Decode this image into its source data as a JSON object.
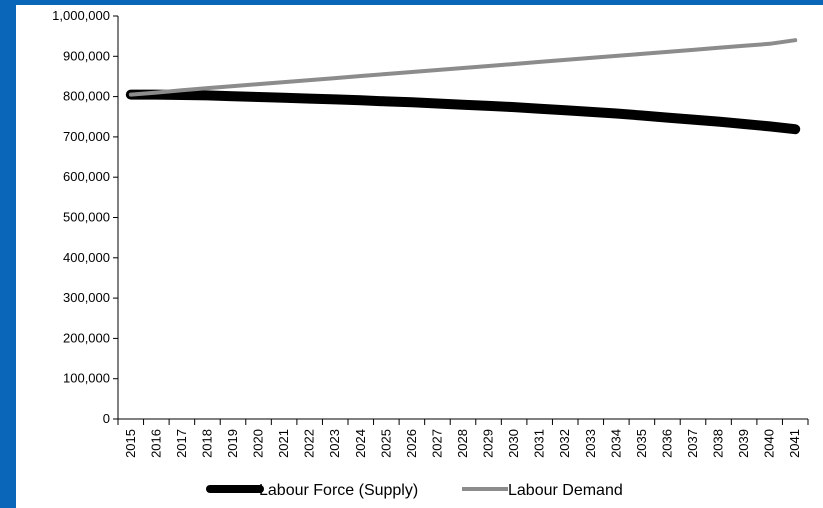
{
  "colors": {
    "frame": "#0a66b8",
    "background": "#ffffff",
    "supply": "#000000",
    "demand": "#8c8c8c"
  },
  "chart_data": {
    "type": "line",
    "title": "",
    "xlabel": "",
    "ylabel": "",
    "x": [
      "2015",
      "2016",
      "2017",
      "2018",
      "2019",
      "2020",
      "2021",
      "2022",
      "2023",
      "2024",
      "2025",
      "2026",
      "2027",
      "2028",
      "2029",
      "2030",
      "2031",
      "2032",
      "2033",
      "2034",
      "2035",
      "2036",
      "2037",
      "2038",
      "2039",
      "2040",
      "2041"
    ],
    "ylim": [
      0,
      1000000
    ],
    "yticks": [
      0,
      100000,
      200000,
      300000,
      400000,
      500000,
      600000,
      700000,
      800000,
      900000,
      1000000
    ],
    "ytick_labels": [
      "0",
      "100,000",
      "200,000",
      "300,000",
      "400,000",
      "500,000",
      "600,000",
      "700,000",
      "800,000",
      "900,000",
      "1,000,000"
    ],
    "grid": false,
    "legend_position": "bottom",
    "series": [
      {
        "name": "Labour Force (Supply)",
        "color": "#000000",
        "values": [
          805000,
          805000,
          804000,
          803000,
          801000,
          799000,
          797000,
          795000,
          793000,
          791000,
          788000,
          786000,
          783000,
          780000,
          777000,
          774000,
          770000,
          766000,
          762000,
          758000,
          753000,
          748000,
          743000,
          738000,
          732000,
          726000,
          719000
        ]
      },
      {
        "name": "Labour Demand",
        "color": "#8c8c8c",
        "values": [
          805000,
          810000,
          816000,
          821000,
          826000,
          831000,
          836000,
          841000,
          846000,
          851000,
          856000,
          861000,
          866000,
          871000,
          876000,
          881000,
          886000,
          891000,
          896000,
          901000,
          906000,
          911000,
          916000,
          921000,
          926000,
          931000,
          940000
        ]
      }
    ]
  }
}
